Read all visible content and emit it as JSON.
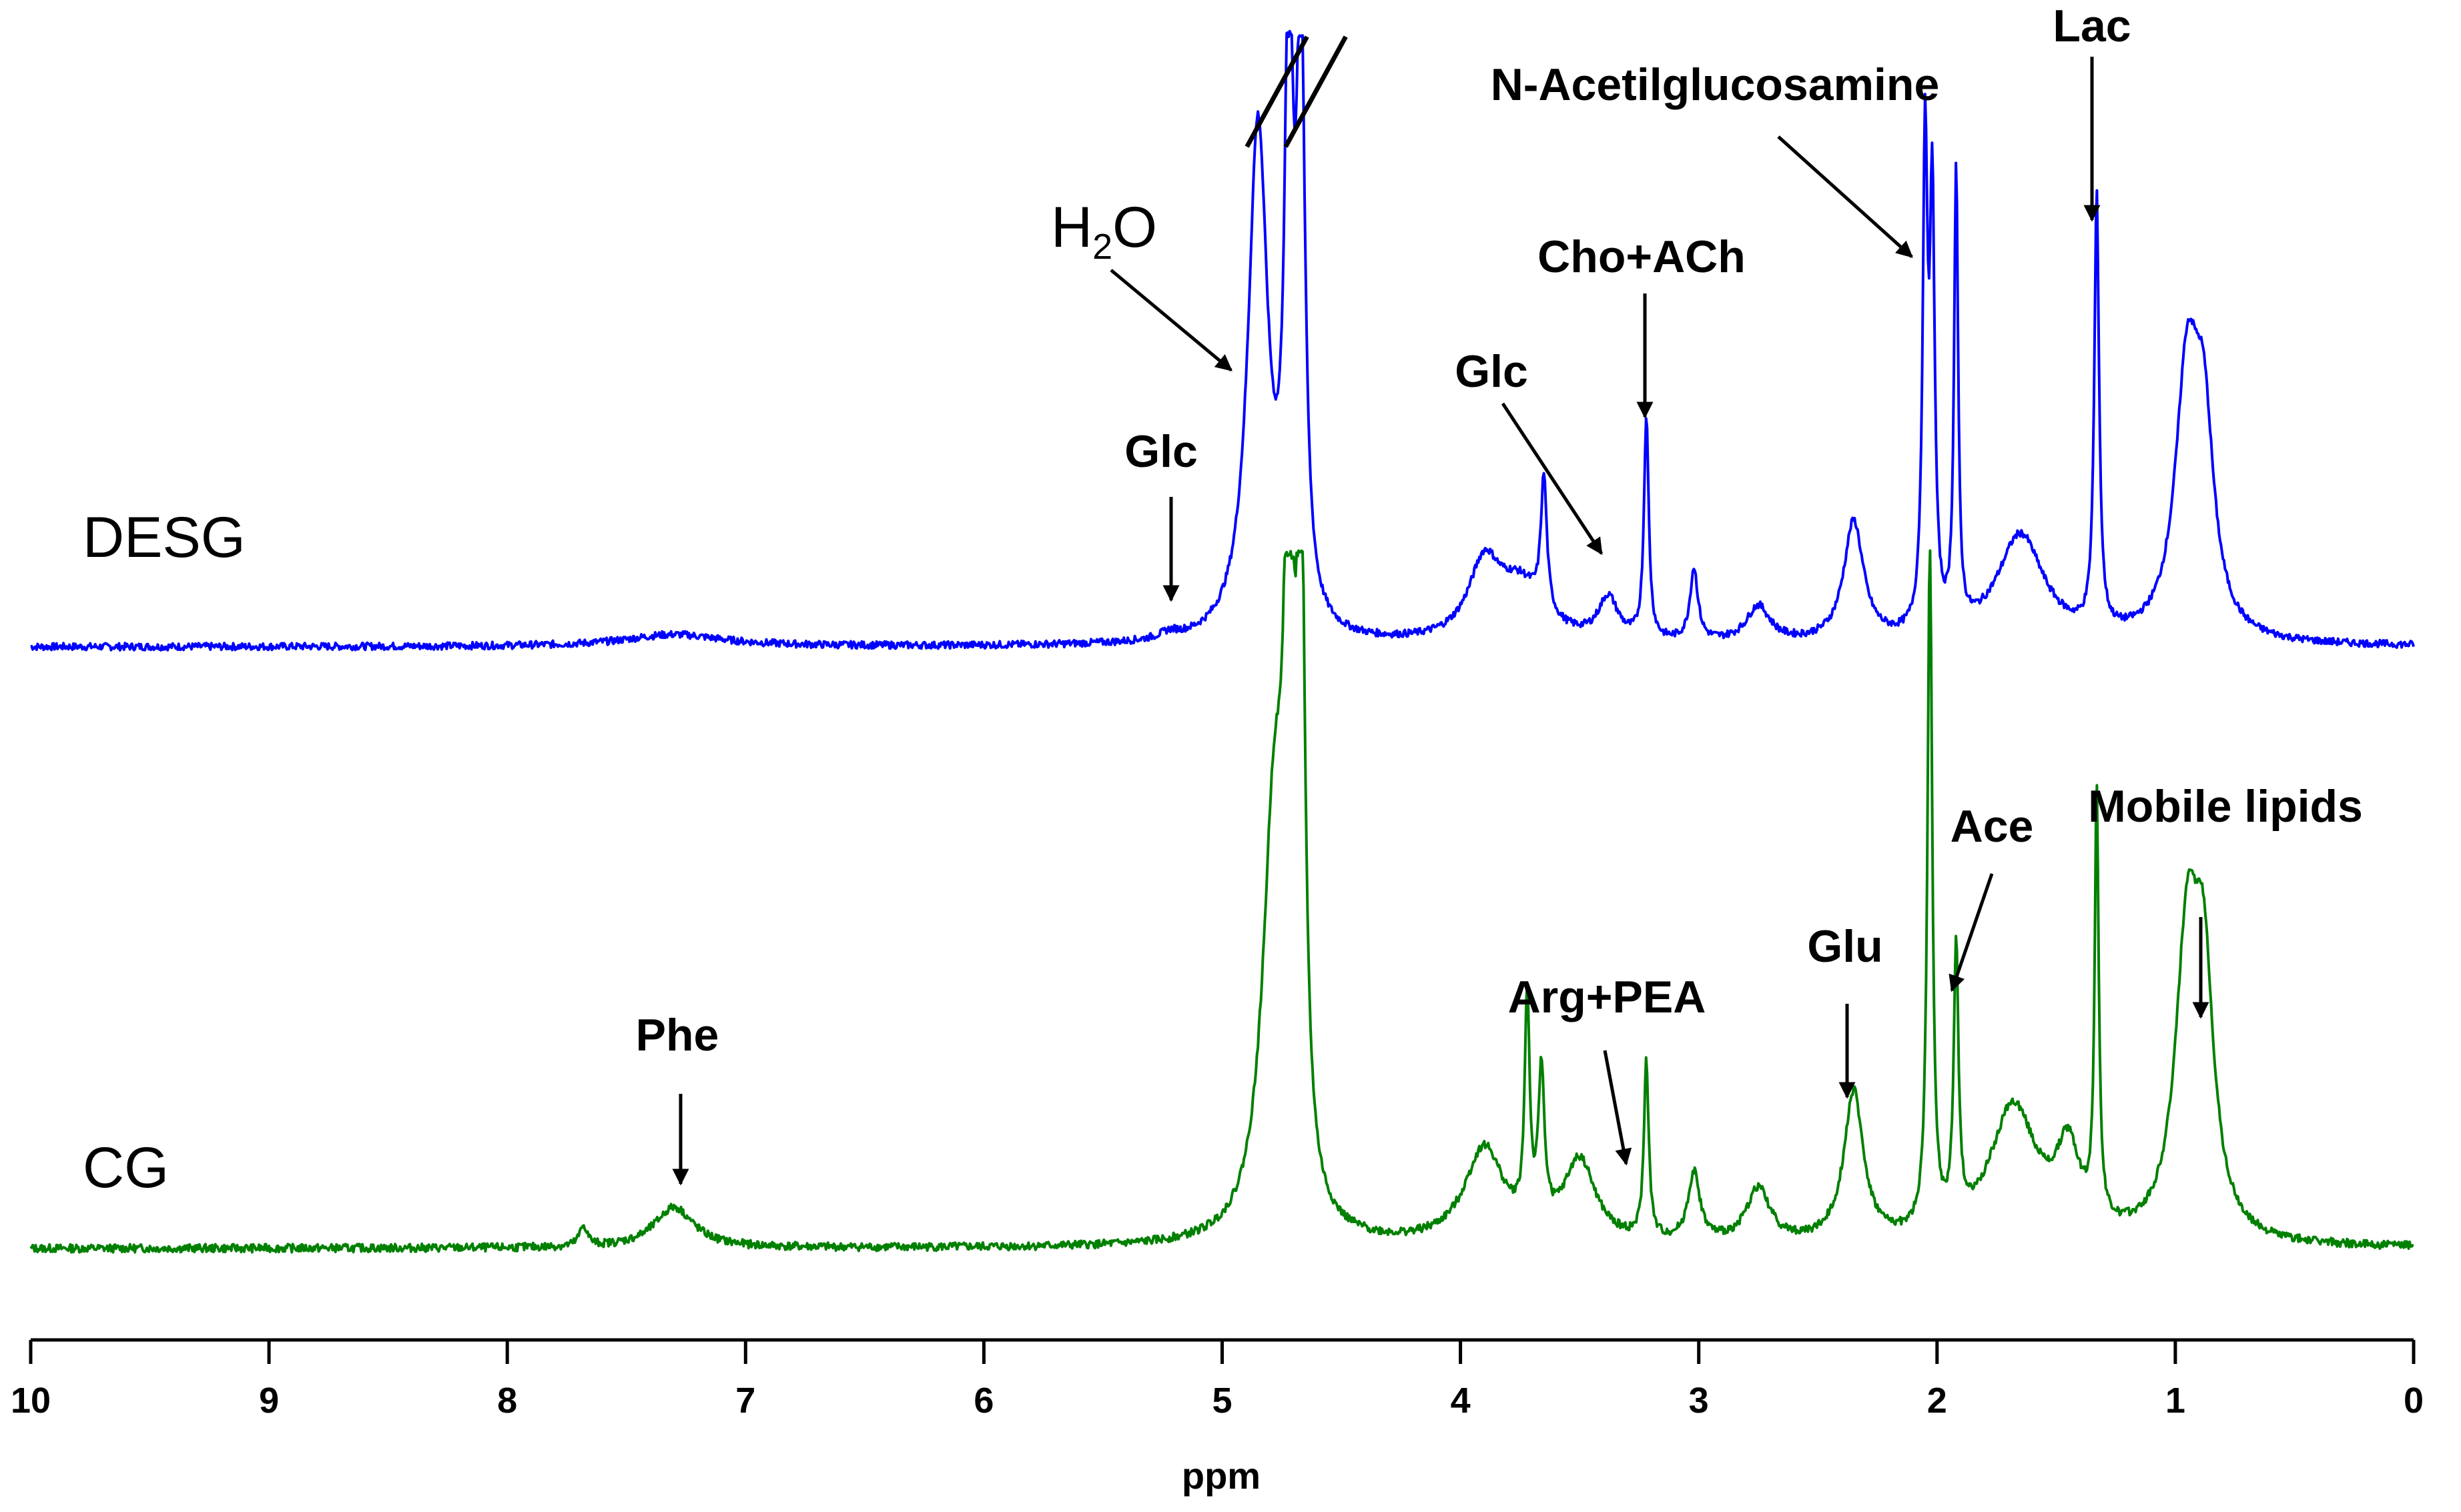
{
  "chart_data": {
    "type": "line",
    "xlabel": "ppm",
    "xlim": [
      10,
      0
    ],
    "x_reversed": true,
    "x_ticks": [
      "10",
      "9",
      "8",
      "7",
      "6",
      "5",
      "4",
      "3",
      "2",
      "1",
      "0"
    ],
    "legend": "none",
    "grid": false,
    "water_peak_truncated": true,
    "series": [
      {
        "name": "DESG",
        "color": "#0000ff",
        "peaks": [
          {
            "ppm": 7.3,
            "height": 0.02,
            "width": 0.25
          },
          {
            "ppm": 5.22,
            "height": 0.01,
            "width": 0.05
          },
          {
            "ppm": 4.85,
            "height": 0.85,
            "width": 0.05
          },
          {
            "ppm": 4.72,
            "height": 1.0,
            "width": 0.02
          },
          {
            "ppm": 4.67,
            "height": 1.0,
            "width": 0.02
          },
          {
            "ppm": 3.9,
            "height": 0.12,
            "width": 0.08
          },
          {
            "ppm": 3.75,
            "height": 0.09,
            "width": 0.12
          },
          {
            "ppm": 3.65,
            "height": 0.22,
            "width": 0.015
          },
          {
            "ppm": 3.38,
            "height": 0.07,
            "width": 0.05
          },
          {
            "ppm": 3.22,
            "height": 0.37,
            "width": 0.012
          },
          {
            "ppm": 3.02,
            "height": 0.12,
            "width": 0.02
          },
          {
            "ppm": 2.75,
            "height": 0.06,
            "width": 0.06
          },
          {
            "ppm": 2.35,
            "height": 0.2,
            "width": 0.05
          },
          {
            "ppm": 2.05,
            "height": 0.8,
            "width": 0.012
          },
          {
            "ppm": 2.02,
            "height": 0.7,
            "width": 0.012
          },
          {
            "ppm": 1.92,
            "height": 0.76,
            "width": 0.01
          },
          {
            "ppm": 1.65,
            "height": 0.18,
            "width": 0.12
          },
          {
            "ppm": 1.33,
            "height": 0.72,
            "width": 0.012
          },
          {
            "ppm": 0.95,
            "height": 0.43,
            "width": 0.06
          },
          {
            "ppm": 0.88,
            "height": 0.3,
            "width": 0.05
          }
        ]
      },
      {
        "name": "CG",
        "color": "#008000",
        "peaks": [
          {
            "ppm": 7.68,
            "height": 0.03,
            "width": 0.02
          },
          {
            "ppm": 7.3,
            "height": 0.06,
            "width": 0.1
          },
          {
            "ppm": 4.78,
            "height": 0.62,
            "width": 0.06
          },
          {
            "ppm": 4.72,
            "height": 1.0,
            "width": 0.02
          },
          {
            "ppm": 4.67,
            "height": 1.0,
            "width": 0.02
          },
          {
            "ppm": 3.9,
            "height": 0.14,
            "width": 0.1
          },
          {
            "ppm": 3.72,
            "height": 0.33,
            "width": 0.012
          },
          {
            "ppm": 3.66,
            "height": 0.22,
            "width": 0.015
          },
          {
            "ppm": 3.5,
            "height": 0.12,
            "width": 0.08
          },
          {
            "ppm": 3.22,
            "height": 0.26,
            "width": 0.012
          },
          {
            "ppm": 3.02,
            "height": 0.1,
            "width": 0.03
          },
          {
            "ppm": 2.75,
            "height": 0.08,
            "width": 0.06
          },
          {
            "ppm": 2.35,
            "height": 0.22,
            "width": 0.05
          },
          {
            "ppm": 2.03,
            "height": 1.0,
            "width": 0.012
          },
          {
            "ppm": 1.92,
            "height": 0.4,
            "width": 0.012
          },
          {
            "ppm": 1.68,
            "height": 0.2,
            "width": 0.12
          },
          {
            "ppm": 1.45,
            "height": 0.12,
            "width": 0.06
          },
          {
            "ppm": 1.33,
            "height": 0.63,
            "width": 0.01
          },
          {
            "ppm": 0.95,
            "height": 0.42,
            "width": 0.06
          },
          {
            "ppm": 0.88,
            "height": 0.33,
            "width": 0.05
          }
        ]
      }
    ],
    "annotations": [
      {
        "text": "Glc",
        "ppm": 5.2,
        "series": "DESG"
      },
      {
        "text": "H2O",
        "ppm": 4.85,
        "series": "DESG"
      },
      {
        "text": "Glc",
        "ppm": 3.35,
        "series": "DESG"
      },
      {
        "text": "Cho+ACh",
        "ppm": 3.22,
        "series": "DESG"
      },
      {
        "text": "N-Acetilglucosamine",
        "ppm": 2.05,
        "series": "DESG"
      },
      {
        "text": "Lac",
        "ppm": 1.33,
        "series": "DESG"
      },
      {
        "text": "Phe",
        "ppm": 7.3,
        "series": "CG"
      },
      {
        "text": "Arg+PEA",
        "ppm": 3.3,
        "series": "CG"
      },
      {
        "text": "Glu",
        "ppm": 2.35,
        "series": "CG"
      },
      {
        "text": "Ace",
        "ppm": 1.92,
        "series": "CG"
      },
      {
        "text": "Mobile lipids",
        "ppm": 0.88,
        "series": "CG"
      }
    ],
    "series_labels": {
      "desg": "DESG",
      "cg": "CG"
    },
    "h2o": {
      "main": "H",
      "sub": "2",
      "tail": "O"
    }
  }
}
